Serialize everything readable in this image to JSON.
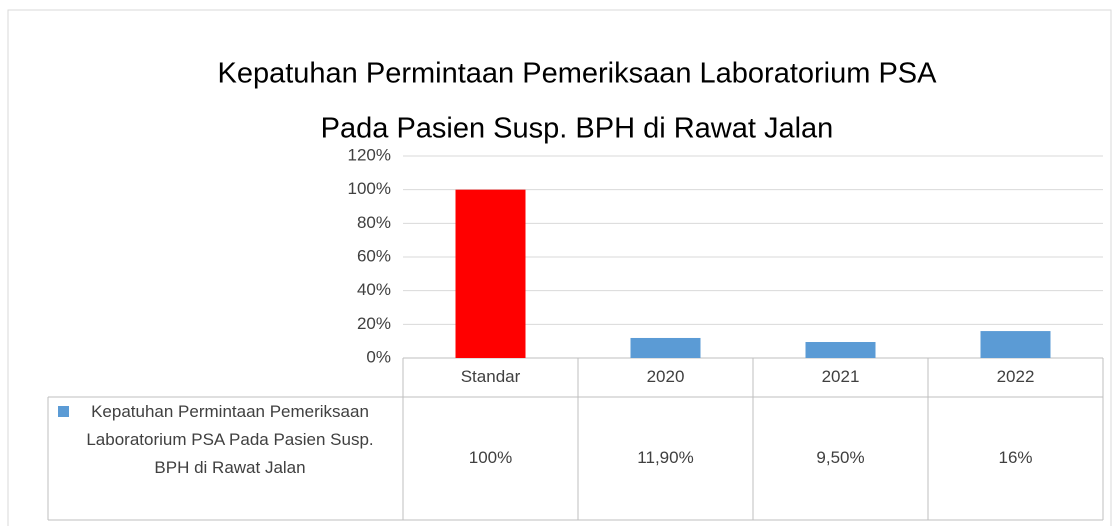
{
  "chart_data": {
    "type": "bar",
    "title": [
      "Kepatuhan Permintaan Pemeriksaan Laboratorium PSA",
      "Pada Pasien Susp. BPH di Rawat Jalan"
    ],
    "categories": [
      "Standar",
      "2020",
      "2021",
      "2022"
    ],
    "series": [
      {
        "name": "Kepatuhan Permintaan Pemeriksaan Laboratorium PSA Pada Pasien Susp. BPH di Rawat Jalan",
        "color": "#5b9bd5",
        "point_colors": [
          "#ff0000",
          "#5b9bd5",
          "#5b9bd5",
          "#5b9bd5"
        ],
        "values": [
          100,
          11.9,
          9.5,
          16
        ],
        "value_labels": [
          "100%",
          "11,90%",
          "9,50%",
          "16%"
        ]
      }
    ],
    "ylim": [
      0,
      120
    ],
    "yticks": [
      {
        "value": 0,
        "label": "0%"
      },
      {
        "value": 20,
        "label": "20%"
      },
      {
        "value": 40,
        "label": "40%"
      },
      {
        "value": 60,
        "label": "60%"
      },
      {
        "value": 80,
        "label": "80%"
      },
      {
        "value": 100,
        "label": "100%"
      },
      {
        "value": 120,
        "label": "120%"
      }
    ],
    "grid": true,
    "data_table": true
  }
}
